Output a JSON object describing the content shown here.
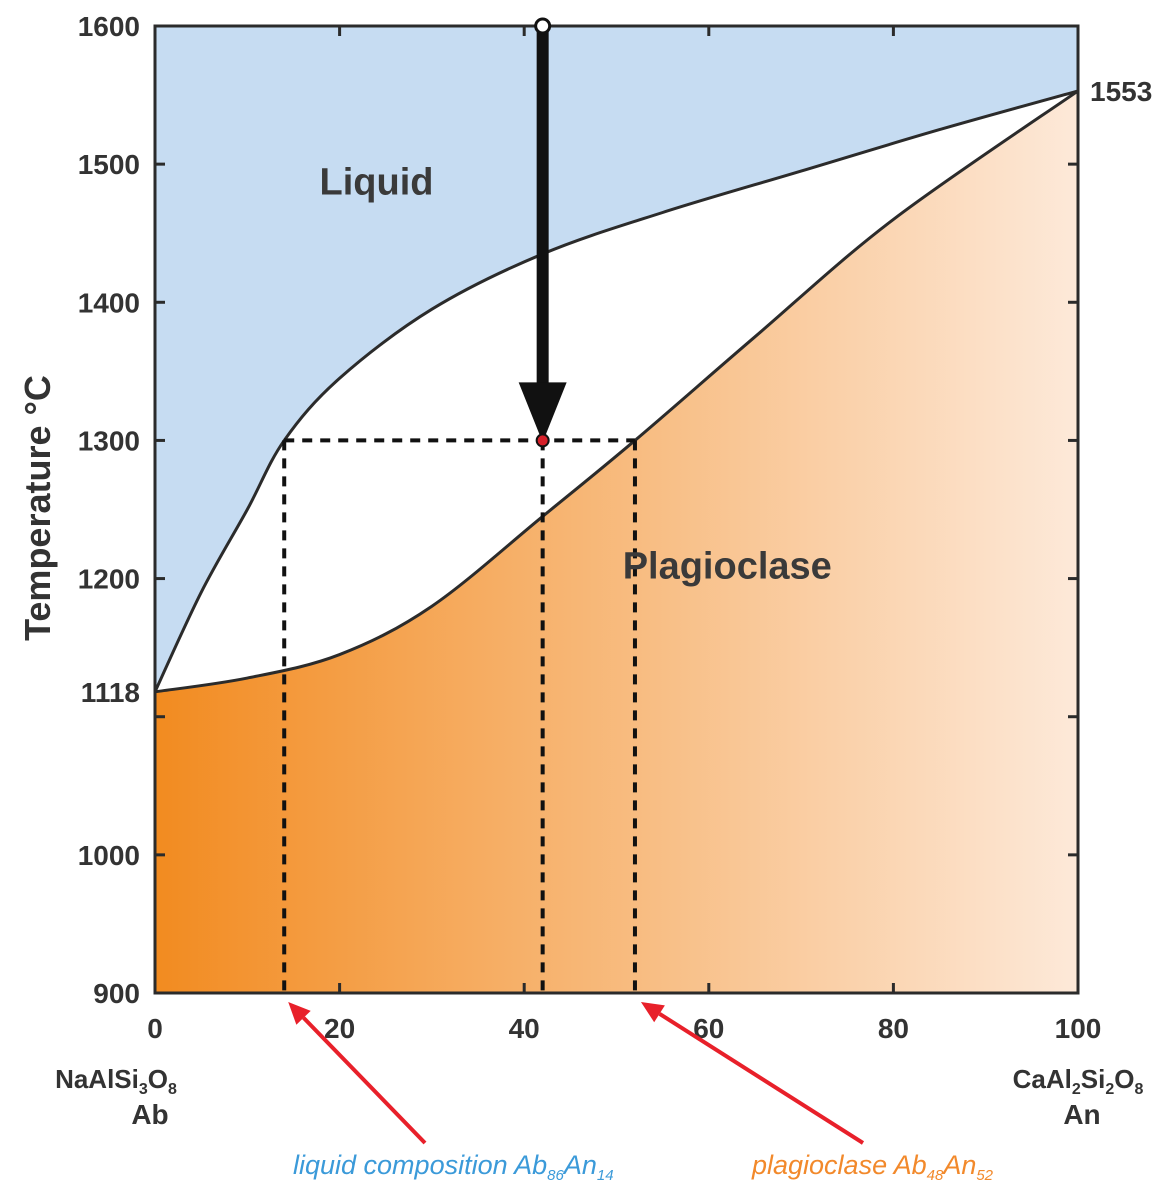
{
  "chart_data": {
    "type": "phase-diagram",
    "ylabel": "Temperature °C",
    "xlim": [
      0,
      100
    ],
    "ylim": [
      900,
      1600
    ],
    "x_ticks": [
      "0",
      "20",
      "40",
      "60",
      "80",
      "100"
    ],
    "y_ticks": [
      "900",
      "1000",
      "1200",
      "1300",
      "1400",
      "1500",
      "1600"
    ],
    "y_tick_values": [
      900,
      1000,
      1200,
      1300,
      1400,
      1500,
      1600
    ],
    "y_minor_ticks": [
      1100
    ],
    "highlight_tick": "1300",
    "highlight_color": "#e8202a",
    "melt_low": {
      "label": "1118",
      "x": 0,
      "y": 1118
    },
    "melt_high": {
      "label": "1553",
      "x": 100,
      "y": 1553
    },
    "left_end": {
      "formula_main": "NaAlSi",
      "sub1": "3",
      "mid": "O",
      "sub2": "8",
      "abbrev": "Ab"
    },
    "right_end": {
      "formula_main": "CaAl",
      "sub1": "2",
      "mid": "Si",
      "sub2": "2",
      "mid2": "O",
      "sub3": "8",
      "abbrev": "An"
    },
    "liquidus": [
      [
        0,
        1118
      ],
      [
        5,
        1190
      ],
      [
        10,
        1250
      ],
      [
        14,
        1300
      ],
      [
        20,
        1345
      ],
      [
        30,
        1395
      ],
      [
        42,
        1435
      ],
      [
        55,
        1465
      ],
      [
        70,
        1495
      ],
      [
        85,
        1525
      ],
      [
        100,
        1553
      ]
    ],
    "solidus": [
      [
        0,
        1118
      ],
      [
        10,
        1128
      ],
      [
        20,
        1145
      ],
      [
        30,
        1180
      ],
      [
        42,
        1245
      ],
      [
        52,
        1300
      ],
      [
        65,
        1375
      ],
      [
        80,
        1460
      ],
      [
        100,
        1553
      ]
    ],
    "regions": [
      {
        "label": "Liquid",
        "x": 24,
        "y": 1478
      },
      {
        "label": "Plagioclase",
        "x": 62,
        "y": 1200
      }
    ],
    "start_point": {
      "x": 42,
      "y": 1600
    },
    "cooling_point": {
      "x": 42,
      "y": 1300
    },
    "tie_line": {
      "y": 1300,
      "liquid_x": 14,
      "solid_x": 52,
      "bulk_x": 42
    },
    "colors": {
      "liquid": "#c6dcf2",
      "solid_left": "#f28b20",
      "solid_right": "#fde9d9",
      "line": "#2b2b2b",
      "arrow": "#111111",
      "annotation_arrow": "#e8202a",
      "liquid_note": "#3b9ad9",
      "plag_note": "#f2892b"
    }
  },
  "annotations": {
    "liquid": {
      "text": "liquid composition Ab",
      "sub1": "86",
      "mid": "An",
      "sub2": "14"
    },
    "plagioclase": {
      "text": "plagioclase Ab",
      "sub1": "48",
      "mid": "An",
      "sub2": "52"
    }
  }
}
